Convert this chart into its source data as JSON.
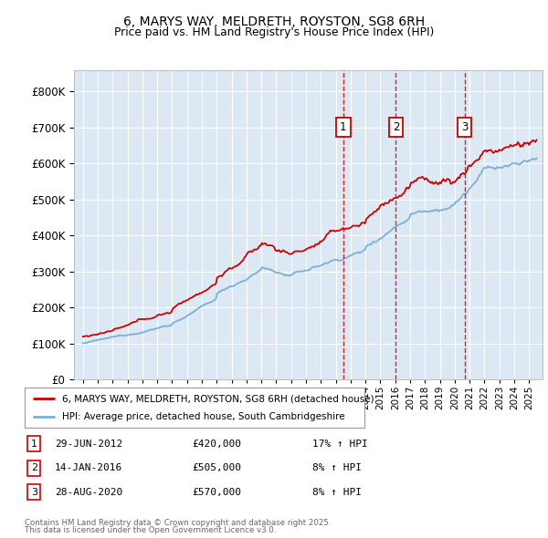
{
  "title": "6, MARYS WAY, MELDRETH, ROYSTON, SG8 6RH",
  "subtitle": "Price paid vs. HM Land Registry's House Price Index (HPI)",
  "background_color": "#dce9f5",
  "outer_bg_color": "#ffffff",
  "line1_color": "#cc0000",
  "line2_color": "#7ab0d4",
  "line1_label": "6, MARYS WAY, MELDRETH, ROYSTON, SG8 6RH (detached house)",
  "line2_label": "HPI: Average price, detached house, South Cambridgeshire",
  "yticks": [
    0,
    100000,
    200000,
    300000,
    400000,
    500000,
    600000,
    700000,
    800000
  ],
  "ylim": [
    0,
    860000
  ],
  "transactions": [
    {
      "num": 1,
      "date": "29-JUN-2012",
      "price": 420000,
      "change": "17% ↑ HPI"
    },
    {
      "num": 2,
      "date": "14-JAN-2016",
      "price": 505000,
      "change": "8% ↑ HPI"
    },
    {
      "num": 3,
      "date": "28-AUG-2020",
      "price": 570000,
      "change": "8% ↑ HPI"
    }
  ],
  "sale_years": [
    2012.495,
    2016.038,
    2020.66
  ],
  "footer_line1": "Contains HM Land Registry data © Crown copyright and database right 2025.",
  "footer_line2": "This data is licensed under the Open Government Licence v3.0.",
  "xlim_start": 1994.4,
  "xlim_end": 2025.9
}
